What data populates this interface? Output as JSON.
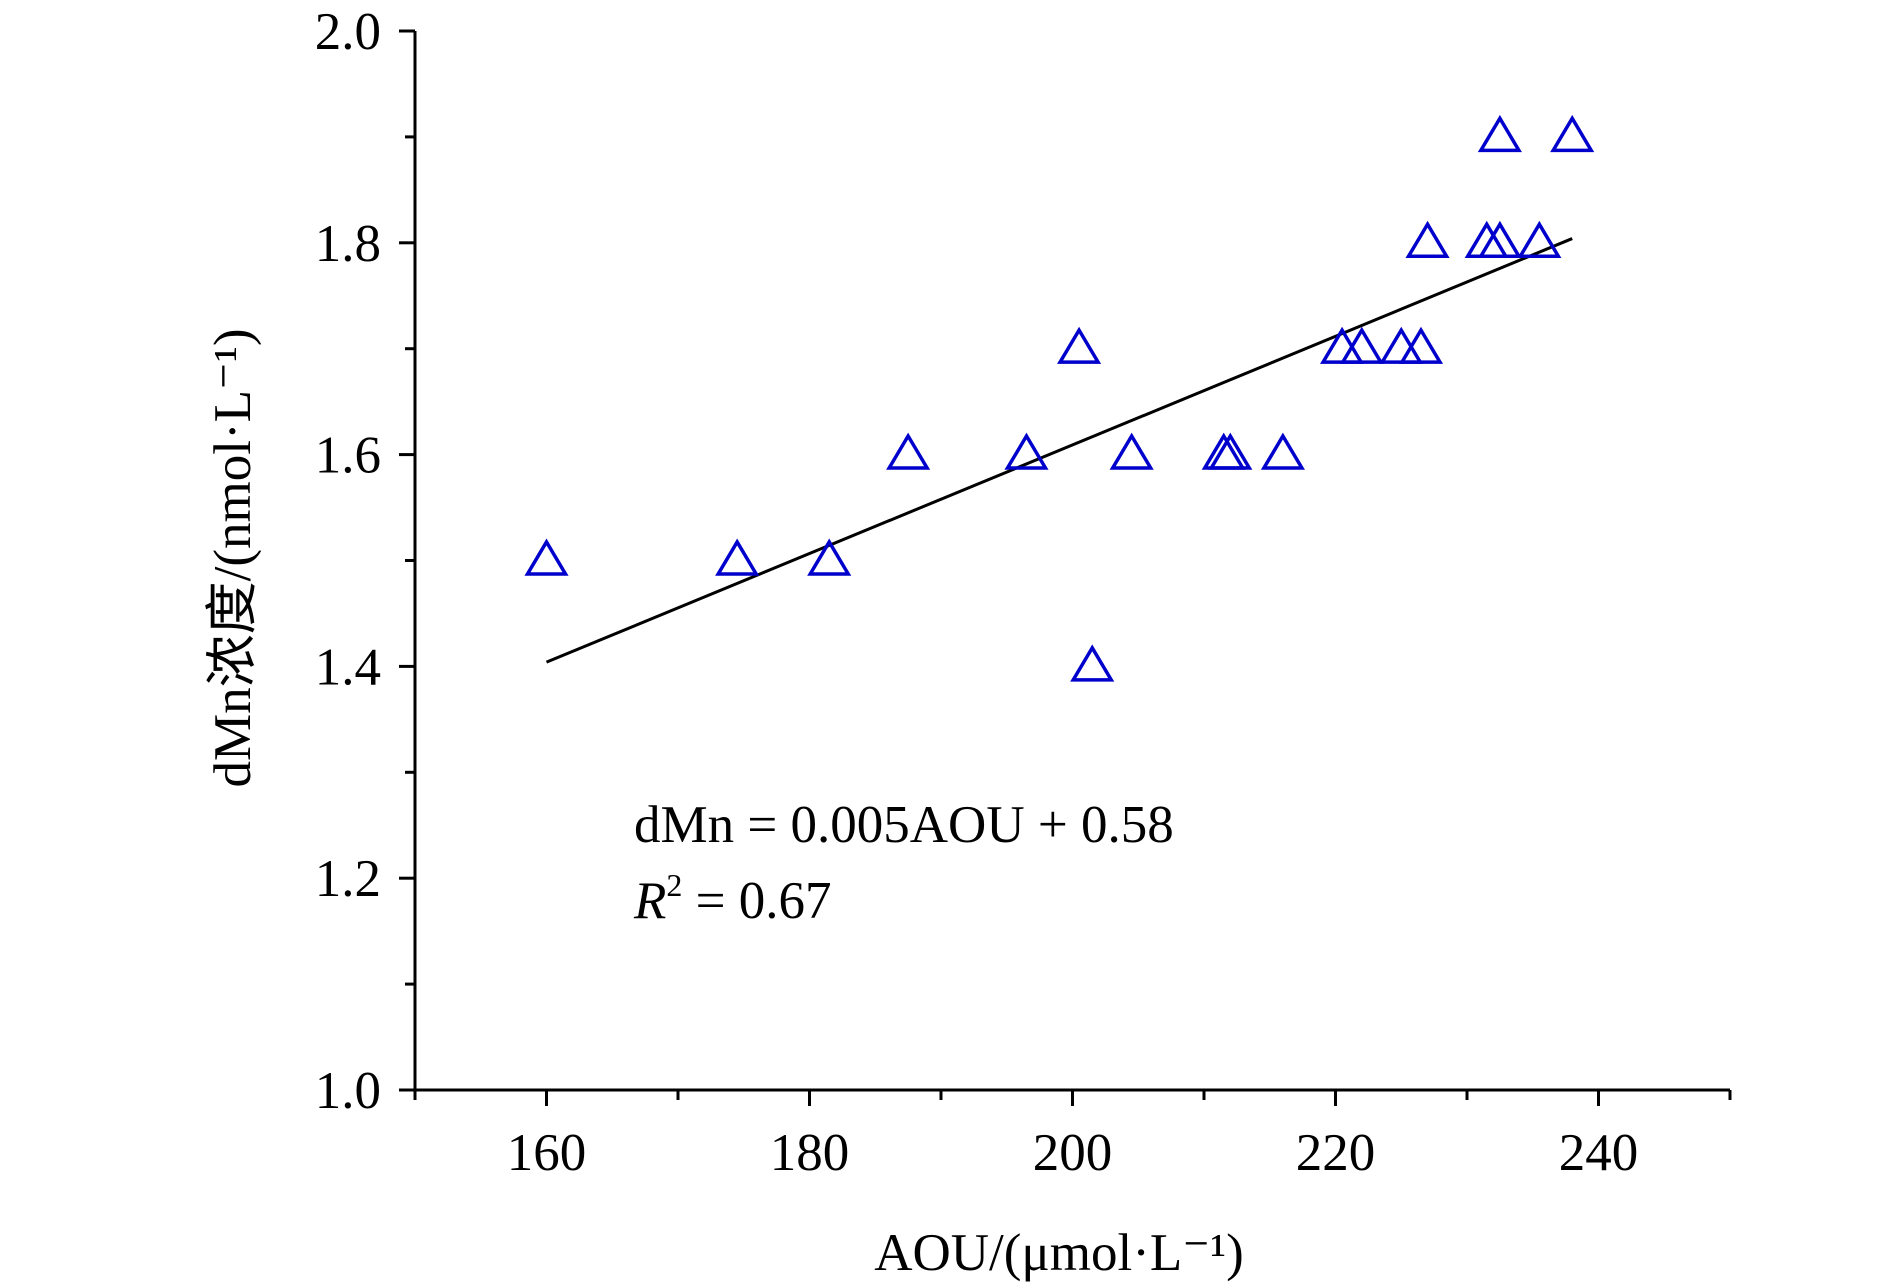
{
  "chart_data": {
    "type": "scatter",
    "title": "",
    "xlabel": "AOU/(μmol·L⁻¹)",
    "ylabel": "dMn浓度/(nmol·L⁻¹)",
    "xlim": [
      150,
      250
    ],
    "ylim": [
      1.0,
      2.0
    ],
    "x_ticks": [
      160,
      180,
      200,
      220,
      240
    ],
    "y_ticks": [
      1.0,
      1.2,
      1.4,
      1.6,
      1.8,
      2.0
    ],
    "x_tick_labels": [
      "160",
      "180",
      "200",
      "220",
      "240"
    ],
    "y_tick_labels": [
      "1.0",
      "1.2",
      "1.4",
      "1.6",
      "1.8",
      "2.0"
    ],
    "grid": false,
    "marker": "open-triangle",
    "colors": {
      "marker": "#0000cc",
      "line": "#000000",
      "axis": "#000000"
    },
    "points": [
      {
        "x": 160,
        "y": 1.5
      },
      {
        "x": 174.5,
        "y": 1.5
      },
      {
        "x": 181.5,
        "y": 1.5
      },
      {
        "x": 187.5,
        "y": 1.6
      },
      {
        "x": 196.5,
        "y": 1.6
      },
      {
        "x": 200.5,
        "y": 1.7
      },
      {
        "x": 201.5,
        "y": 1.4
      },
      {
        "x": 204.5,
        "y": 1.6
      },
      {
        "x": 211.5,
        "y": 1.6
      },
      {
        "x": 212,
        "y": 1.6
      },
      {
        "x": 216,
        "y": 1.6
      },
      {
        "x": 220.5,
        "y": 1.7
      },
      {
        "x": 222,
        "y": 1.7
      },
      {
        "x": 225,
        "y": 1.7
      },
      {
        "x": 226.5,
        "y": 1.7
      },
      {
        "x": 227,
        "y": 1.8
      },
      {
        "x": 231.5,
        "y": 1.8
      },
      {
        "x": 232.5,
        "y": 1.8
      },
      {
        "x": 232.5,
        "y": 1.9
      },
      {
        "x": 235.5,
        "y": 1.8
      },
      {
        "x": 238,
        "y": 1.9
      }
    ],
    "fit_line": {
      "x": [
        160,
        238
      ],
      "y": [
        1.404,
        1.804
      ]
    },
    "annotations": {
      "equation": "dMn = 0.005AOU + 0.58",
      "r2_symbol": "R",
      "r2_exponent": "2",
      "r2_value": " = 0.67"
    }
  }
}
